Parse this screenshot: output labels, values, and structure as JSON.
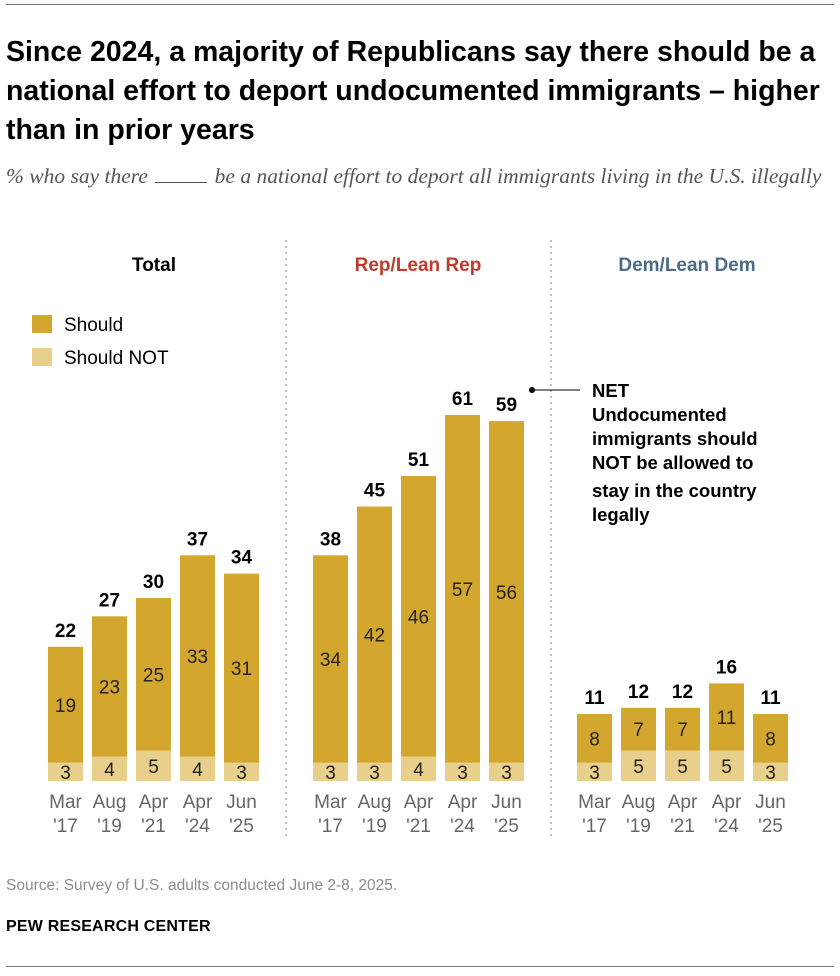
{
  "title": "Since 2024, a majority of Republicans say there should be a national effort to deport undocumented immigrants – higher than in prior years",
  "subtitle_before": "% who say there",
  "subtitle_after": "be a national effort to deport all immigrants living in the U.S. illegally",
  "legend": {
    "should": "Should",
    "should_not": "Should NOT"
  },
  "annotation": {
    "title": "NET",
    "lines": [
      "Undocumented",
      "immigrants should",
      "NOT be allowed to",
      "stay in the country",
      "legally"
    ]
  },
  "colors": {
    "should": "#d3a72e",
    "should_not": "#e8cf8c",
    "dem_heading": "#4a6c86",
    "rep_heading": "#c0392b",
    "total_heading": "#000000",
    "divider": "#aaaaaa"
  },
  "chart_data": {
    "type": "bar",
    "stacked": true,
    "ylim": [
      0,
      100
    ],
    "categories": [
      [
        "Mar",
        "'17"
      ],
      [
        "Aug",
        "'19"
      ],
      [
        "Apr",
        "'21"
      ],
      [
        "Apr",
        "'24"
      ],
      [
        "Jun",
        "'25"
      ]
    ],
    "groups": [
      {
        "name": "Total",
        "should": [
          19,
          23,
          25,
          33,
          31
        ],
        "should_not": [
          3,
          4,
          5,
          4,
          3
        ],
        "net": [
          22,
          27,
          30,
          37,
          34
        ]
      },
      {
        "name": "Rep/Lean Rep",
        "should": [
          34,
          42,
          46,
          57,
          56
        ],
        "should_not": [
          3,
          3,
          4,
          3,
          3
        ],
        "net": [
          38,
          45,
          51,
          61,
          59
        ]
      },
      {
        "name": "Dem/Lean Dem",
        "should": [
          8,
          7,
          7,
          11,
          8
        ],
        "should_not": [
          3,
          5,
          5,
          5,
          3
        ],
        "net": [
          11,
          12,
          12,
          16,
          11
        ]
      }
    ]
  },
  "source": "Source: Survey of U.S. adults conducted June 2-8, 2025.",
  "brand": "PEW RESEARCH CENTER"
}
